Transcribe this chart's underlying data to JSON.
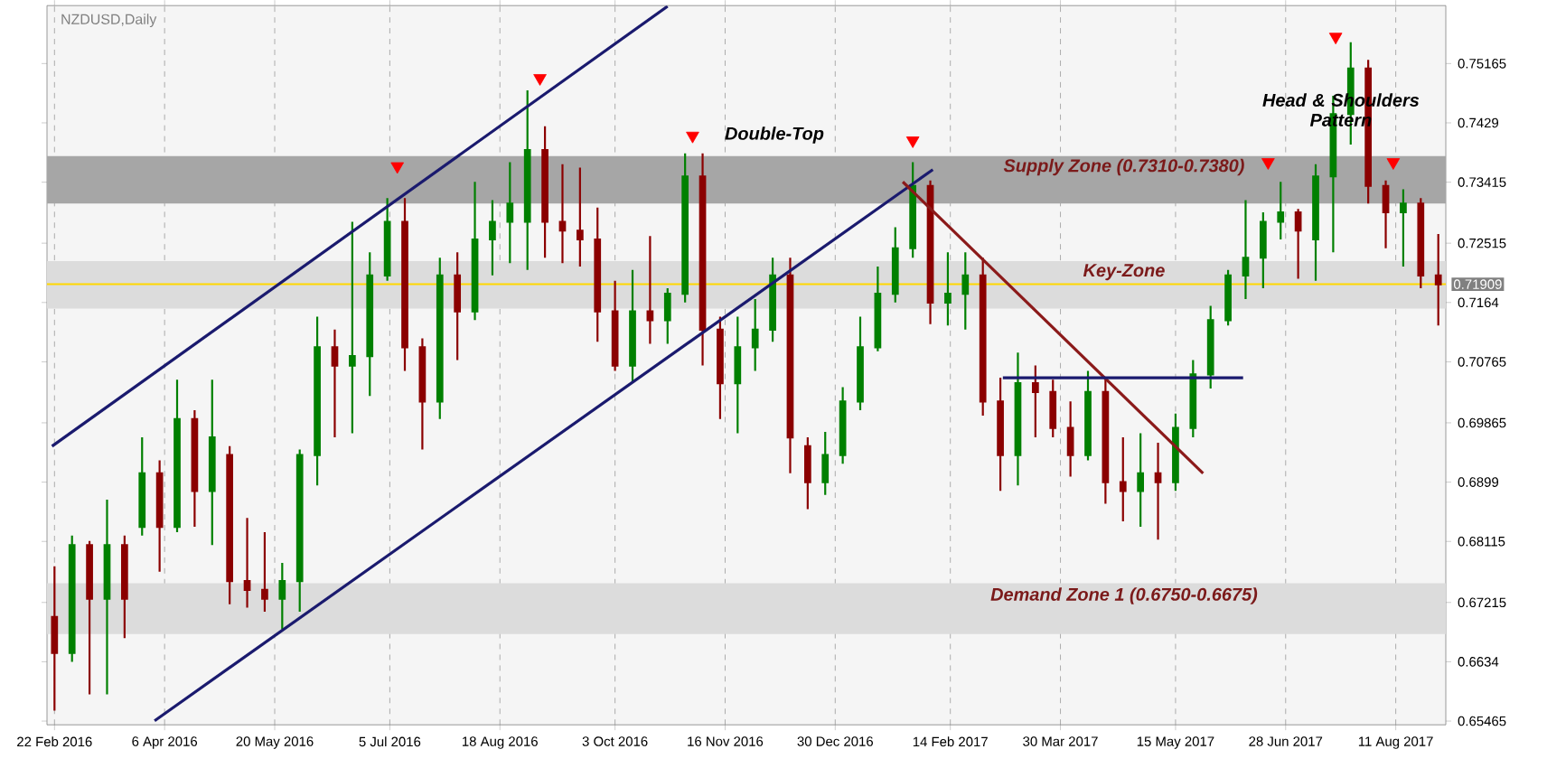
{
  "chart_data": {
    "type": "candlestick",
    "title": "NZDUSD,Daily",
    "xlim": [
      "2016-02-19",
      "2017-08-31"
    ],
    "xticks": [
      {
        "value": "2016-02-22",
        "label": "22 Feb 2016"
      },
      {
        "value": "2016-04-06",
        "label": "6 Apr 2016"
      },
      {
        "value": "2016-05-20",
        "label": "20 May 2016"
      },
      {
        "value": "2016-07-05",
        "label": "5 Jul 2016"
      },
      {
        "value": "2016-08-18",
        "label": "18 Aug 2016"
      },
      {
        "value": "2016-10-03",
        "label": "3 Oct 2016"
      },
      {
        "value": "2016-11-16",
        "label": "16 Nov 2016"
      },
      {
        "value": "2016-12-30",
        "label": "30 Dec 2016"
      },
      {
        "value": "2017-02-14",
        "label": "14 Feb 2017"
      },
      {
        "value": "2017-03-30",
        "label": "30 Mar 2017"
      },
      {
        "value": "2017-05-15",
        "label": "15 May 2017"
      },
      {
        "value": "2017-06-28",
        "label": "28 Jun 2017"
      },
      {
        "value": "2017-08-11",
        "label": "11 Aug 2017"
      }
    ],
    "ylim": [
      0.6541,
      0.7602
    ],
    "yticks": [
      0.65465,
      0.6634,
      0.67215,
      0.68115,
      0.6899,
      0.69865,
      0.70765,
      0.7164,
      0.72515,
      0.73415,
      0.7429,
      0.75165
    ],
    "grid": "x",
    "bands": [
      {
        "axis": "y",
        "from": 0.731,
        "to": 0.738,
        "label": "Supply Zone (0.7310-0.7380)",
        "color": "#a6a6a6"
      },
      {
        "axis": "y",
        "from": 0.7155,
        "to": 0.7225,
        "label": "Key-Zone",
        "color": "#dcdcdc"
      },
      {
        "axis": "y",
        "from": 0.6675,
        "to": 0.675,
        "label": "Demand Zone 1 (0.6750-0.6675)",
        "color": "#dcdcdc"
      }
    ],
    "ref_lines": [
      {
        "axis": "y",
        "value": 0.71909,
        "label": "0.71909",
        "color": "#ffd700"
      }
    ],
    "annotations": [
      "Double-Top",
      "Head & Shoulders Pattern"
    ],
    "series": [
      {
        "x": [
          "2016-02-22",
          "2016-02-29",
          "2016-03-07",
          "2016-03-14",
          "2016-03-21",
          "2016-03-28",
          "2016-04-04",
          "2016-04-11",
          "2016-04-18",
          "2016-04-25",
          "2016-05-02",
          "2016-05-09",
          "2016-05-16",
          "2016-05-23",
          "2016-05-30",
          "2016-06-06",
          "2016-06-13",
          "2016-06-20",
          "2016-06-27",
          "2016-07-04",
          "2016-07-11",
          "2016-07-18",
          "2016-07-25",
          "2016-08-01",
          "2016-08-08",
          "2016-08-15",
          "2016-08-22",
          "2016-08-29",
          "2016-09-05",
          "2016-09-12",
          "2016-09-19",
          "2016-09-26",
          "2016-10-03",
          "2016-10-10",
          "2016-10-17",
          "2016-10-24",
          "2016-10-31",
          "2016-11-07",
          "2016-11-14",
          "2016-11-21",
          "2016-11-28",
          "2016-12-05",
          "2016-12-12",
          "2016-12-19",
          "2016-12-26",
          "2017-01-02",
          "2017-01-09",
          "2017-01-16",
          "2017-01-23",
          "2017-01-30",
          "2017-02-06",
          "2017-02-13",
          "2017-02-20",
          "2017-02-27",
          "2017-03-06",
          "2017-03-13",
          "2017-03-20",
          "2017-03-27",
          "2017-04-03",
          "2017-04-10",
          "2017-04-17",
          "2017-04-24",
          "2017-05-01",
          "2017-05-08",
          "2017-05-15",
          "2017-05-22",
          "2017-05-29",
          "2017-06-05",
          "2017-06-12",
          "2017-06-19",
          "2017-06-26",
          "2017-07-03",
          "2017-07-10",
          "2017-07-17",
          "2017-07-24",
          "2017-07-31",
          "2017-08-07",
          "2017-08-14",
          "2017-08-21",
          "2017-08-28"
        ],
        "ohlc": [
          [
            0.67,
            0.6775,
            0.6562,
            0.6647
          ],
          [
            0.6647,
            0.682,
            0.6634,
            0.6806
          ],
          [
            0.6806,
            0.6812,
            0.6586,
            0.6727
          ],
          [
            0.6727,
            0.6873,
            0.6586,
            0.6806
          ],
          [
            0.6806,
            0.682,
            0.6669,
            0.6727
          ],
          [
            0.6833,
            0.6965,
            0.682,
            0.6912
          ],
          [
            0.6912,
            0.6931,
            0.6767,
            0.6833
          ],
          [
            0.6833,
            0.705,
            0.6825,
            0.6992
          ],
          [
            0.6992,
            0.7005,
            0.6833,
            0.6886
          ],
          [
            0.6886,
            0.705,
            0.6806,
            0.6965
          ],
          [
            0.6939,
            0.6952,
            0.6719,
            0.6753
          ],
          [
            0.6753,
            0.6846,
            0.6714,
            0.674
          ],
          [
            0.674,
            0.6825,
            0.6708,
            0.6727
          ],
          [
            0.6727,
            0.678,
            0.6682,
            0.6753
          ],
          [
            0.6753,
            0.6947,
            0.6708,
            0.6939
          ],
          [
            0.6939,
            0.7143,
            0.6894,
            0.7098
          ],
          [
            0.7098,
            0.7124,
            0.6965,
            0.7071
          ],
          [
            0.7071,
            0.7283,
            0.6971,
            0.7085
          ],
          [
            0.7085,
            0.7238,
            0.7026,
            0.7204
          ],
          [
            0.7204,
            0.7318,
            0.7196,
            0.7283
          ],
          [
            0.7283,
            0.7318,
            0.7063,
            0.7098
          ],
          [
            0.7098,
            0.7111,
            0.6947,
            0.7018
          ],
          [
            0.7018,
            0.723,
            0.6992,
            0.7204
          ],
          [
            0.7204,
            0.7238,
            0.7079,
            0.7151
          ],
          [
            0.7151,
            0.7342,
            0.7138,
            0.7257
          ],
          [
            0.7257,
            0.7315,
            0.7204,
            0.7283
          ],
          [
            0.7283,
            0.7371,
            0.7222,
            0.731
          ],
          [
            0.7283,
            0.7477,
            0.7212,
            0.7389
          ],
          [
            0.7389,
            0.7424,
            0.723,
            0.7283
          ],
          [
            0.7283,
            0.7368,
            0.7222,
            0.727
          ],
          [
            0.727,
            0.7363,
            0.7217,
            0.7257
          ],
          [
            0.7257,
            0.7304,
            0.7106,
            0.7151
          ],
          [
            0.7151,
            0.7196,
            0.7063,
            0.7071
          ],
          [
            0.7071,
            0.7212,
            0.7045,
            0.7151
          ],
          [
            0.7151,
            0.7262,
            0.7103,
            0.7138
          ],
          [
            0.7138,
            0.7185,
            0.7103,
            0.7177
          ],
          [
            0.7177,
            0.7384,
            0.7164,
            0.735
          ],
          [
            0.735,
            0.7384,
            0.7071,
            0.7124
          ],
          [
            0.7124,
            0.7143,
            0.6992,
            0.7045
          ],
          [
            0.7045,
            0.7143,
            0.6971,
            0.7098
          ],
          [
            0.7098,
            0.7169,
            0.7063,
            0.7124
          ],
          [
            0.7124,
            0.723,
            0.7106,
            0.7204
          ],
          [
            0.7204,
            0.723,
            0.6912,
            0.6965
          ],
          [
            0.6952,
            0.6965,
            0.6859,
            0.6899
          ],
          [
            0.6899,
            0.6973,
            0.688,
            0.6939
          ],
          [
            0.6939,
            0.7039,
            0.6926,
            0.7018
          ],
          [
            0.7018,
            0.7143,
            0.7005,
            0.7098
          ],
          [
            0.7098,
            0.7217,
            0.7092,
            0.7177
          ],
          [
            0.7177,
            0.7275,
            0.7164,
            0.7244
          ],
          [
            0.7244,
            0.7371,
            0.723,
            0.7336
          ],
          [
            0.7336,
            0.7344,
            0.7132,
            0.7164
          ],
          [
            0.7164,
            0.7238,
            0.713,
            0.7177
          ],
          [
            0.7177,
            0.7238,
            0.7124,
            0.7204
          ],
          [
            0.7204,
            0.723,
            0.6997,
            0.7018
          ],
          [
            0.7018,
            0.7053,
            0.6886,
            0.6939
          ],
          [
            0.6939,
            0.709,
            0.6894,
            0.7045
          ],
          [
            0.7045,
            0.7071,
            0.6965,
            0.7032
          ],
          [
            0.7032,
            0.705,
            0.6965,
            0.6979
          ],
          [
            0.6979,
            0.7018,
            0.6907,
            0.6939
          ],
          [
            0.6939,
            0.7063,
            0.6931,
            0.7032
          ],
          [
            0.7032,
            0.7053,
            0.6867,
            0.6899
          ],
          [
            0.6899,
            0.6965,
            0.6841,
            0.6886
          ],
          [
            0.6886,
            0.6971,
            0.6833,
            0.6912
          ],
          [
            0.6912,
            0.6957,
            0.6814,
            0.6899
          ],
          [
            0.6899,
            0.7,
            0.6886,
            0.6979
          ],
          [
            0.6979,
            0.7079,
            0.6965,
            0.7058
          ],
          [
            0.7058,
            0.7159,
            0.7037,
            0.7138
          ],
          [
            0.7138,
            0.7212,
            0.713,
            0.7204
          ],
          [
            0.7204,
            0.7315,
            0.7169,
            0.723
          ],
          [
            0.723,
            0.7297,
            0.7185,
            0.7283
          ],
          [
            0.7283,
            0.7342,
            0.7257,
            0.7297
          ],
          [
            0.7297,
            0.7302,
            0.7199,
            0.727
          ],
          [
            0.7257,
            0.7368,
            0.7196,
            0.735
          ],
          [
            0.735,
            0.7469,
            0.7238,
            0.7442
          ],
          [
            0.7442,
            0.7548,
            0.7397,
            0.7509
          ],
          [
            0.7509,
            0.7522,
            0.731,
            0.7336
          ],
          [
            0.7336,
            0.7344,
            0.7244,
            0.7297
          ],
          [
            0.7297,
            0.7331,
            0.7217,
            0.731
          ],
          [
            0.731,
            0.7318,
            0.7185,
            0.7204
          ],
          [
            0.7204,
            0.7265,
            0.713,
            0.7191
          ]
        ],
        "colors": [
          "#8b0000",
          "#008000",
          "#8b0000",
          "#008000",
          "#8b0000",
          "#008000",
          "#8b0000",
          "#008000",
          "#8b0000",
          "#008000",
          "#8b0000",
          "#8b0000",
          "#8b0000",
          "#008000",
          "#008000",
          "#008000",
          "#8b0000",
          "#008000",
          "#008000",
          "#008000",
          "#8b0000",
          "#8b0000",
          "#008000",
          "#8b0000",
          "#008000",
          "#008000",
          "#008000",
          "#008000",
          "#8b0000",
          "#8b0000",
          "#8b0000",
          "#8b0000",
          "#8b0000",
          "#008000",
          "#8b0000",
          "#008000",
          "#008000",
          "#8b0000",
          "#8b0000",
          "#008000",
          "#008000",
          "#008000",
          "#8b0000",
          "#8b0000",
          "#008000",
          "#008000",
          "#008000",
          "#008000",
          "#008000",
          "#008000",
          "#8b0000",
          "#008000",
          "#008000",
          "#8b0000",
          "#8b0000",
          "#008000",
          "#8b0000",
          "#8b0000",
          "#8b0000",
          "#008000",
          "#8b0000",
          "#8b0000",
          "#008000",
          "#8b0000",
          "#008000",
          "#008000",
          "#008000",
          "#008000",
          "#008000",
          "#008000",
          "#008000",
          "#8b0000",
          "#008000",
          "#008000",
          "#008000",
          "#8b0000",
          "#8b0000",
          "#008000",
          "#8b0000",
          "#8b0000"
        ]
      },
      {
        "type": "line",
        "color": "#1a1a6e",
        "x": [
          "2016-02-21",
          "2016-10-24"
        ],
        "values": [
          0.6952,
          0.7601
        ]
      },
      {
        "type": "line",
        "color": "#1a1a6e",
        "x": [
          "2016-04-02",
          "2017-02-07"
        ],
        "values": [
          0.6547,
          0.736
        ]
      },
      {
        "type": "line",
        "color": "#8b1a1a",
        "x": [
          "2017-01-26",
          "2017-05-26"
        ],
        "values": [
          0.7342,
          0.6912
        ]
      },
      {
        "type": "line",
        "color": "#1a1a6e",
        "x": [
          "2017-03-07",
          "2017-06-11"
        ],
        "values": [
          0.7053,
          0.7053
        ]
      },
      {
        "type": "scatter",
        "marker": "triangle",
        "color": "#ff0000",
        "x": [
          "2016-07-08",
          "2016-09-03",
          "2016-11-03",
          "2017-01-30",
          "2017-06-21",
          "2017-07-18",
          "2017-08-10"
        ],
        "values": [
          0.7365,
          0.7495,
          0.741,
          0.7403,
          0.7371,
          0.7556,
          0.7371
        ]
      }
    ]
  }
}
